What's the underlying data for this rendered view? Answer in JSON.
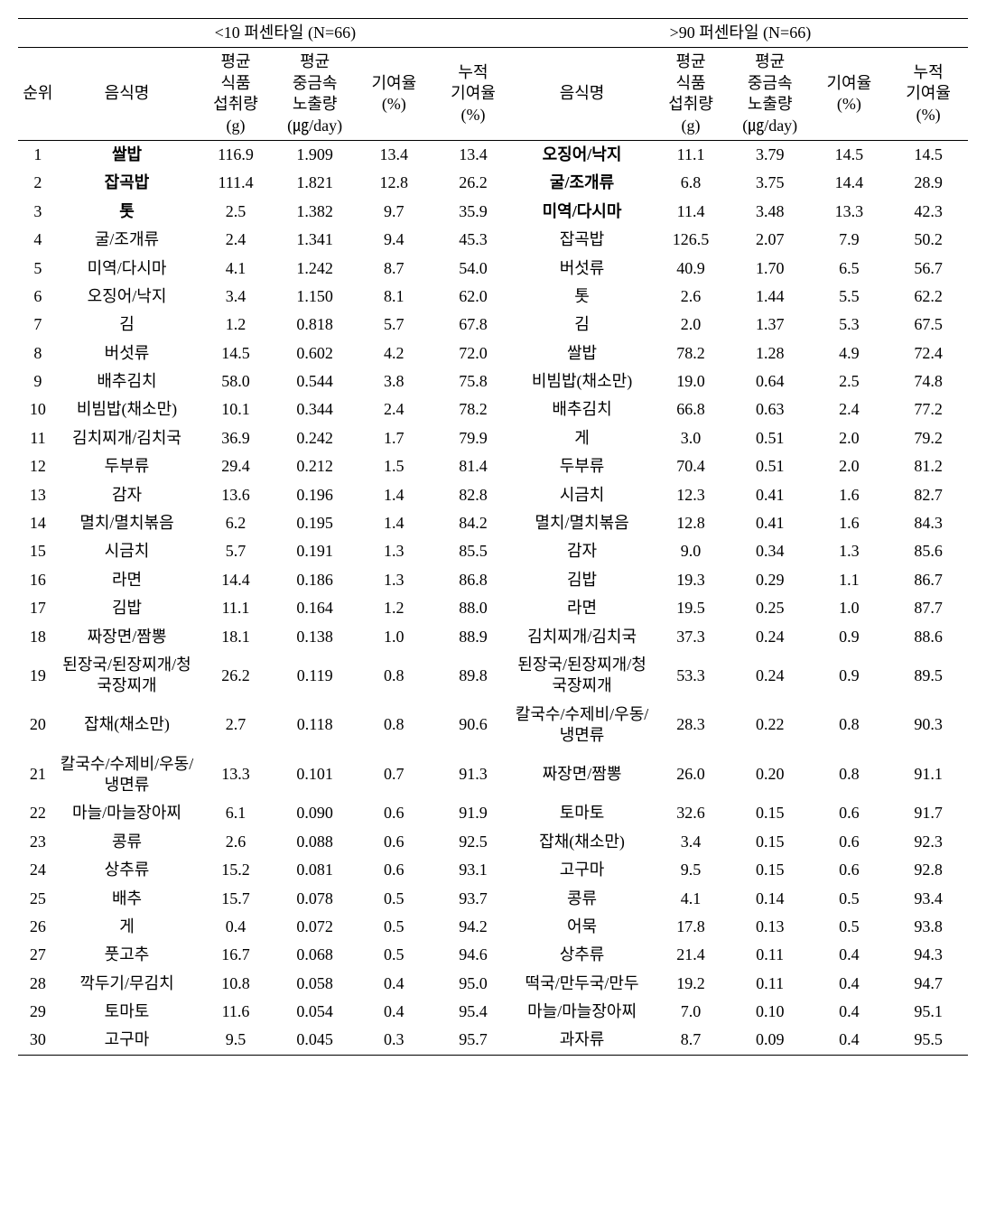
{
  "headers": {
    "group_left": "<10 퍼센타일 (N=66)",
    "group_right": ">90 퍼센타일 (N=66)",
    "rank": "순위",
    "food": "음식명",
    "intake": "평균\n식품\n섭취량\n(g)",
    "exposure": "평균\n중금속\n노출량\n(㎍/day)",
    "contrib": "기여율\n(%)",
    "cumul": "누적\n기여율\n(%)"
  },
  "rows": [
    {
      "rank": "1",
      "l_food": "쌀밥",
      "l_bold": true,
      "l_intake": "116.9",
      "l_exp": "1.909",
      "l_cont": "13.4",
      "l_cum": "13.4",
      "r_food": "오징어/낙지",
      "r_bold": true,
      "r_intake": "11.1",
      "r_exp": "3.79",
      "r_cont": "14.5",
      "r_cum": "14.5"
    },
    {
      "rank": "2",
      "l_food": "잡곡밥",
      "l_bold": true,
      "l_intake": "111.4",
      "l_exp": "1.821",
      "l_cont": "12.8",
      "l_cum": "26.2",
      "r_food": "굴/조개류",
      "r_bold": true,
      "r_intake": "6.8",
      "r_exp": "3.75",
      "r_cont": "14.4",
      "r_cum": "28.9"
    },
    {
      "rank": "3",
      "l_food": "톳",
      "l_bold": true,
      "l_intake": "2.5",
      "l_exp": "1.382",
      "l_cont": "9.7",
      "l_cum": "35.9",
      "r_food": "미역/다시마",
      "r_bold": true,
      "r_intake": "11.4",
      "r_exp": "3.48",
      "r_cont": "13.3",
      "r_cum": "42.3"
    },
    {
      "rank": "4",
      "l_food": "굴/조개류",
      "l_intake": "2.4",
      "l_exp": "1.341",
      "l_cont": "9.4",
      "l_cum": "45.3",
      "r_food": "잡곡밥",
      "r_intake": "126.5",
      "r_exp": "2.07",
      "r_cont": "7.9",
      "r_cum": "50.2"
    },
    {
      "rank": "5",
      "l_food": "미역/다시마",
      "l_intake": "4.1",
      "l_exp": "1.242",
      "l_cont": "8.7",
      "l_cum": "54.0",
      "r_food": "버섯류",
      "r_intake": "40.9",
      "r_exp": "1.70",
      "r_cont": "6.5",
      "r_cum": "56.7"
    },
    {
      "rank": "6",
      "l_food": "오징어/낙지",
      "l_intake": "3.4",
      "l_exp": "1.150",
      "l_cont": "8.1",
      "l_cum": "62.0",
      "r_food": "톳",
      "r_intake": "2.6",
      "r_exp": "1.44",
      "r_cont": "5.5",
      "r_cum": "62.2"
    },
    {
      "rank": "7",
      "l_food": "김",
      "l_intake": "1.2",
      "l_exp": "0.818",
      "l_cont": "5.7",
      "l_cum": "67.8",
      "r_food": "김",
      "r_intake": "2.0",
      "r_exp": "1.37",
      "r_cont": "5.3",
      "r_cum": "67.5"
    },
    {
      "rank": "8",
      "l_food": "버섯류",
      "l_intake": "14.5",
      "l_exp": "0.602",
      "l_cont": "4.2",
      "l_cum": "72.0",
      "r_food": "쌀밥",
      "r_intake": "78.2",
      "r_exp": "1.28",
      "r_cont": "4.9",
      "r_cum": "72.4"
    },
    {
      "rank": "9",
      "l_food": "배추김치",
      "l_intake": "58.0",
      "l_exp": "0.544",
      "l_cont": "3.8",
      "l_cum": "75.8",
      "r_food": "비빔밥(채소만)",
      "r_intake": "19.0",
      "r_exp": "0.64",
      "r_cont": "2.5",
      "r_cum": "74.8"
    },
    {
      "rank": "10",
      "l_food": "비빔밥(채소만)",
      "l_intake": "10.1",
      "l_exp": "0.344",
      "l_cont": "2.4",
      "l_cum": "78.2",
      "r_food": "배추김치",
      "r_intake": "66.8",
      "r_exp": "0.63",
      "r_cont": "2.4",
      "r_cum": "77.2"
    },
    {
      "rank": "11",
      "l_food": "김치찌개/김치국",
      "l_intake": "36.9",
      "l_exp": "0.242",
      "l_cont": "1.7",
      "l_cum": "79.9",
      "r_food": "게",
      "r_intake": "3.0",
      "r_exp": "0.51",
      "r_cont": "2.0",
      "r_cum": "79.2"
    },
    {
      "rank": "12",
      "l_food": "두부류",
      "l_intake": "29.4",
      "l_exp": "0.212",
      "l_cont": "1.5",
      "l_cum": "81.4",
      "r_food": "두부류",
      "r_intake": "70.4",
      "r_exp": "0.51",
      "r_cont": "2.0",
      "r_cum": "81.2"
    },
    {
      "rank": "13",
      "l_food": "감자",
      "l_intake": "13.6",
      "l_exp": "0.196",
      "l_cont": "1.4",
      "l_cum": "82.8",
      "r_food": "시금치",
      "r_intake": "12.3",
      "r_exp": "0.41",
      "r_cont": "1.6",
      "r_cum": "82.7"
    },
    {
      "rank": "14",
      "l_food": "멸치/멸치볶음",
      "l_intake": "6.2",
      "l_exp": "0.195",
      "l_cont": "1.4",
      "l_cum": "84.2",
      "r_food": "멸치/멸치볶음",
      "r_intake": "12.8",
      "r_exp": "0.41",
      "r_cont": "1.6",
      "r_cum": "84.3"
    },
    {
      "rank": "15",
      "l_food": "시금치",
      "l_intake": "5.7",
      "l_exp": "0.191",
      "l_cont": "1.3",
      "l_cum": "85.5",
      "r_food": "감자",
      "r_intake": "9.0",
      "r_exp": "0.34",
      "r_cont": "1.3",
      "r_cum": "85.6"
    },
    {
      "rank": "16",
      "l_food": "라면",
      "l_intake": "14.4",
      "l_exp": "0.186",
      "l_cont": "1.3",
      "l_cum": "86.8",
      "r_food": "김밥",
      "r_intake": "19.3",
      "r_exp": "0.29",
      "r_cont": "1.1",
      "r_cum": "86.7"
    },
    {
      "rank": "17",
      "l_food": "김밥",
      "l_intake": "11.1",
      "l_exp": "0.164",
      "l_cont": "1.2",
      "l_cum": "88.0",
      "r_food": "라면",
      "r_intake": "19.5",
      "r_exp": "0.25",
      "r_cont": "1.0",
      "r_cum": "87.7"
    },
    {
      "rank": "18",
      "l_food": "짜장면/짬뽕",
      "l_intake": "18.1",
      "l_exp": "0.138",
      "l_cont": "1.0",
      "l_cum": "88.9",
      "r_food": "김치찌개/김치국",
      "r_intake": "37.3",
      "r_exp": "0.24",
      "r_cont": "0.9",
      "r_cum": "88.6"
    },
    {
      "rank": "19",
      "l_food": "된장국/된장찌개/청국장찌개",
      "l_intake": "26.2",
      "l_exp": "0.119",
      "l_cont": "0.8",
      "l_cum": "89.8",
      "r_food": "된장국/된장찌개/청국장찌개",
      "r_intake": "53.3",
      "r_exp": "0.24",
      "r_cont": "0.9",
      "r_cum": "89.5"
    },
    {
      "rank": "20",
      "l_food": "잡채(채소만)",
      "l_intake": "2.7",
      "l_exp": "0.118",
      "l_cont": "0.8",
      "l_cum": "90.6",
      "r_food": "칼국수/수제비/우동/냉면류",
      "r_intake": "28.3",
      "r_exp": "0.22",
      "r_cont": "0.8",
      "r_cum": "90.3"
    },
    {
      "rank": "21",
      "l_food": "칼국수/수제비/우동/냉면류",
      "l_intake": "13.3",
      "l_exp": "0.101",
      "l_cont": "0.7",
      "l_cum": "91.3",
      "r_food": "짜장면/짬뽕",
      "r_intake": "26.0",
      "r_exp": "0.20",
      "r_cont": "0.8",
      "r_cum": "91.1"
    },
    {
      "rank": "22",
      "l_food": "마늘/마늘장아찌",
      "l_intake": "6.1",
      "l_exp": "0.090",
      "l_cont": "0.6",
      "l_cum": "91.9",
      "r_food": "토마토",
      "r_intake": "32.6",
      "r_exp": "0.15",
      "r_cont": "0.6",
      "r_cum": "91.7"
    },
    {
      "rank": "23",
      "l_food": "콩류",
      "l_intake": "2.6",
      "l_exp": "0.088",
      "l_cont": "0.6",
      "l_cum": "92.5",
      "r_food": "잡채(채소만)",
      "r_intake": "3.4",
      "r_exp": "0.15",
      "r_cont": "0.6",
      "r_cum": "92.3"
    },
    {
      "rank": "24",
      "l_food": "상추류",
      "l_intake": "15.2",
      "l_exp": "0.081",
      "l_cont": "0.6",
      "l_cum": "93.1",
      "r_food": "고구마",
      "r_intake": "9.5",
      "r_exp": "0.15",
      "r_cont": "0.6",
      "r_cum": "92.8"
    },
    {
      "rank": "25",
      "l_food": "배추",
      "l_intake": "15.7",
      "l_exp": "0.078",
      "l_cont": "0.5",
      "l_cum": "93.7",
      "r_food": "콩류",
      "r_intake": "4.1",
      "r_exp": "0.14",
      "r_cont": "0.5",
      "r_cum": "93.4"
    },
    {
      "rank": "26",
      "l_food": "게",
      "l_intake": "0.4",
      "l_exp": "0.072",
      "l_cont": "0.5",
      "l_cum": "94.2",
      "r_food": "어묵",
      "r_intake": "17.8",
      "r_exp": "0.13",
      "r_cont": "0.5",
      "r_cum": "93.8"
    },
    {
      "rank": "27",
      "l_food": "풋고추",
      "l_intake": "16.7",
      "l_exp": "0.068",
      "l_cont": "0.5",
      "l_cum": "94.6",
      "r_food": "상추류",
      "r_intake": "21.4",
      "r_exp": "0.11",
      "r_cont": "0.4",
      "r_cum": "94.3"
    },
    {
      "rank": "28",
      "l_food": "깍두기/무김치",
      "l_intake": "10.8",
      "l_exp": "0.058",
      "l_cont": "0.4",
      "l_cum": "95.0",
      "r_food": "떡국/만두국/만두",
      "r_intake": "19.2",
      "r_exp": "0.11",
      "r_cont": "0.4",
      "r_cum": "94.7"
    },
    {
      "rank": "29",
      "l_food": "토마토",
      "l_intake": "11.6",
      "l_exp": "0.054",
      "l_cont": "0.4",
      "l_cum": "95.4",
      "r_food": "마늘/마늘장아찌",
      "r_intake": "7.0",
      "r_exp": "0.10",
      "r_cont": "0.4",
      "r_cum": "95.1"
    },
    {
      "rank": "30",
      "l_food": "고구마",
      "l_intake": "9.5",
      "l_exp": "0.045",
      "l_cont": "0.3",
      "l_cum": "95.7",
      "r_food": "과자류",
      "r_intake": "8.7",
      "r_exp": "0.09",
      "r_cont": "0.4",
      "r_cum": "95.5"
    }
  ]
}
